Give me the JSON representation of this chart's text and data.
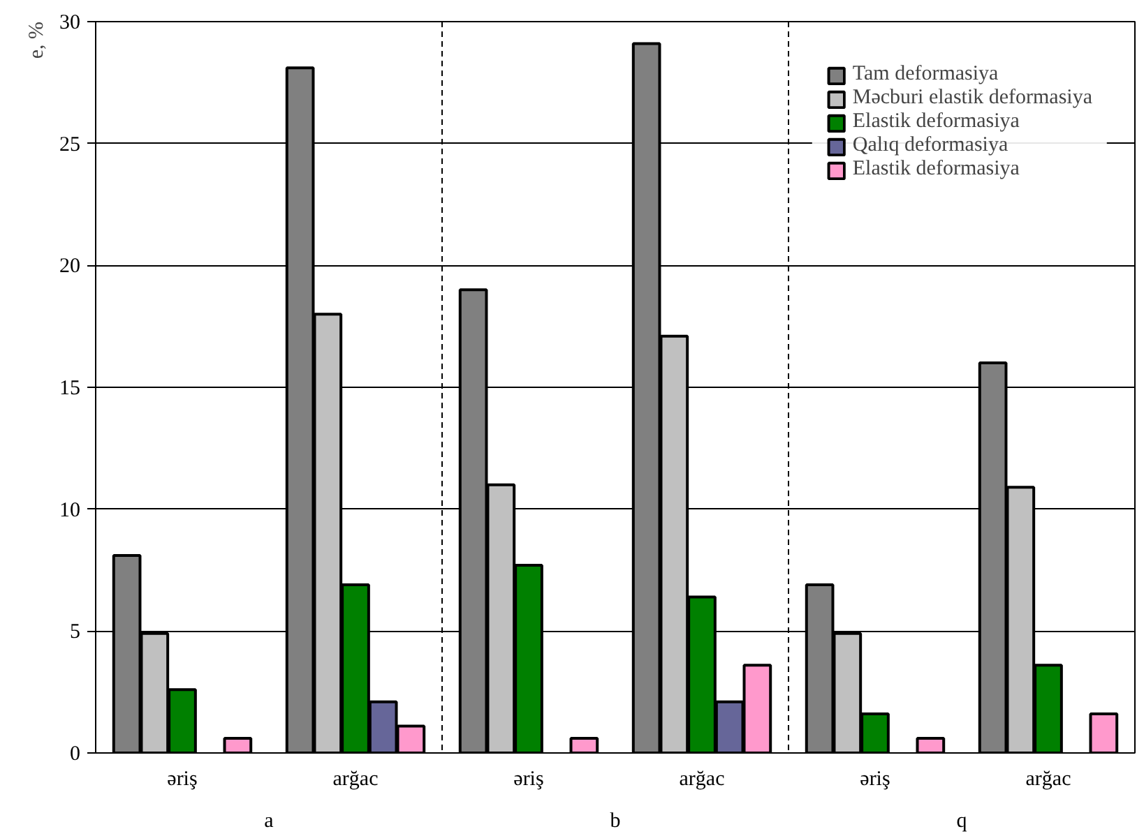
{
  "chart_data": {
    "type": "bar",
    "ylabel": "e, %",
    "categories": [
      "əriş",
      "arğac",
      "əriş",
      "arğac",
      "əriş",
      "arğac"
    ],
    "series": [
      {
        "name": "Tam deformasiya",
        "color": "#808080",
        "values": [
          8.1,
          28.1,
          19,
          29.1,
          6.9,
          16
        ]
      },
      {
        "name": "Məcburi elastik deformasiya",
        "color": "#c0c0c0",
        "values": [
          4.9,
          18,
          11,
          17.1,
          4.9,
          10.9
        ]
      },
      {
        "name": "Elastik deformasiya",
        "color": "#008000",
        "values": [
          2.6,
          6.9,
          7.7,
          6.4,
          1.6,
          3.6
        ]
      },
      {
        "name": "Qalıq deformasiya",
        "color": "#666699",
        "values": [
          null,
          2.1,
          null,
          2.1,
          null,
          null
        ]
      },
      {
        "name": "Elastik deformasiya",
        "color": "#ff99cc",
        "values": [
          0.6,
          1.1,
          0.6,
          3.6,
          0.6,
          1.6
        ]
      }
    ],
    "ylim": [
      0,
      30
    ],
    "yticks": [
      0,
      5,
      10,
      15,
      20,
      25,
      30
    ],
    "grid": "y",
    "legend": "top right",
    "annotations": [
      "a",
      "b",
      "q"
    ]
  }
}
